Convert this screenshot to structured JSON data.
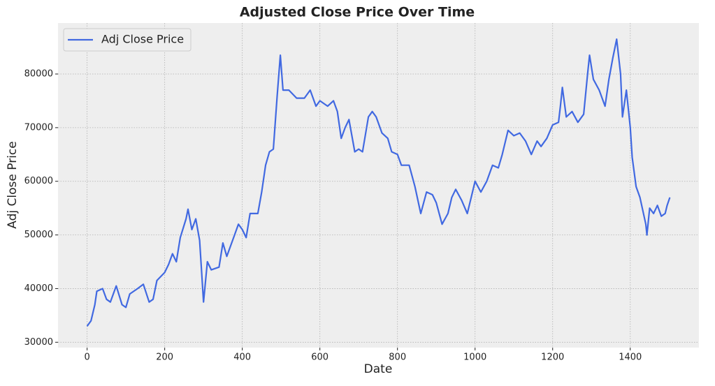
{
  "chart_data": {
    "type": "line",
    "title": "Adjusted Close Price Over Time",
    "x_label": "Date",
    "y_label": "Adj Close Price",
    "x": [
      0,
      10,
      20,
      25,
      40,
      50,
      60,
      75,
      90,
      100,
      110,
      130,
      145,
      160,
      170,
      180,
      200,
      210,
      220,
      230,
      240,
      255,
      260,
      270,
      280,
      290,
      300,
      310,
      320,
      340,
      350,
      360,
      380,
      390,
      400,
      410,
      420,
      440,
      450,
      460,
      470,
      480,
      490,
      498,
      505,
      520,
      540,
      560,
      575,
      590,
      600,
      620,
      635,
      645,
      655,
      665,
      675,
      690,
      700,
      710,
      725,
      735,
      745,
      760,
      775,
      785,
      800,
      810,
      830,
      845,
      860,
      875,
      890,
      900,
      915,
      930,
      940,
      950,
      965,
      980,
      990,
      1000,
      1015,
      1030,
      1045,
      1060,
      1070,
      1085,
      1100,
      1115,
      1130,
      1145,
      1160,
      1170,
      1185,
      1200,
      1215,
      1220,
      1225,
      1235,
      1250,
      1265,
      1280,
      1290,
      1295,
      1305,
      1320,
      1335,
      1345,
      1355,
      1365,
      1375,
      1380,
      1390,
      1400,
      1405,
      1415,
      1425,
      1440,
      1443,
      1450,
      1460,
      1470,
      1480,
      1490,
      1495,
      1502
    ],
    "series": [
      {
        "name": "Adj Close Price",
        "color": "#4169e1",
        "values": [
          33000,
          34000,
          37000,
          39500,
          40000,
          38000,
          37500,
          40500,
          37000,
          36500,
          39000,
          40000,
          40800,
          37500,
          38000,
          41500,
          43000,
          44500,
          46500,
          45000,
          49500,
          53000,
          54800,
          51000,
          53000,
          49000,
          37500,
          45000,
          43500,
          44000,
          48500,
          46000,
          50000,
          52000,
          51000,
          49500,
          54000,
          54000,
          58000,
          63000,
          65500,
          66000,
          76000,
          83500,
          77000,
          77000,
          75500,
          75500,
          77000,
          74000,
          75000,
          74000,
          75000,
          73000,
          68000,
          70000,
          71500,
          65500,
          66000,
          65500,
          72000,
          73000,
          72000,
          69000,
          68000,
          65500,
          65000,
          63000,
          63000,
          59000,
          54000,
          58000,
          57500,
          56000,
          52000,
          54000,
          57000,
          58500,
          56500,
          54000,
          57000,
          60000,
          58000,
          60000,
          63000,
          62500,
          65000,
          69500,
          68500,
          69000,
          67500,
          65000,
          67500,
          66500,
          68000,
          70500,
          71000,
          74000,
          77500,
          72000,
          73000,
          71000,
          72500,
          80000,
          83500,
          79000,
          77000,
          74000,
          79000,
          83000,
          86500,
          80000,
          72000,
          77000,
          70000,
          64500,
          59000,
          57000,
          52000,
          50000,
          55000,
          54000,
          55500,
          53500,
          54000,
          55500,
          57000
        ]
      }
    ],
    "xlim": [
      -75,
      1577
    ],
    "ylim": [
      29000,
      89500
    ],
    "xticks": [
      0,
      200,
      400,
      600,
      800,
      1000,
      1200,
      1400
    ],
    "yticks": [
      30000,
      40000,
      50000,
      60000,
      70000,
      80000
    ],
    "grid": true,
    "legend": "upper left"
  }
}
